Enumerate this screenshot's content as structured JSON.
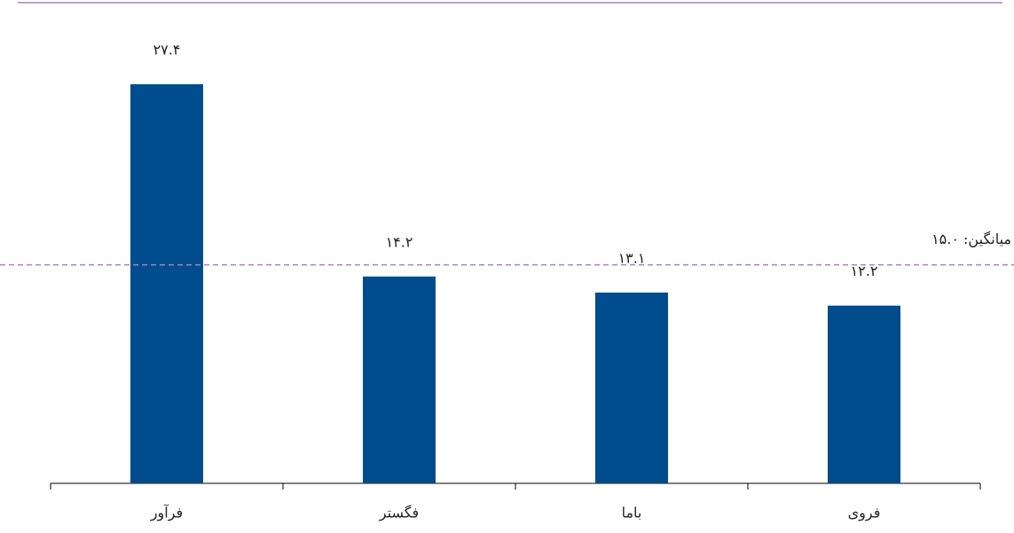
{
  "chart_data": {
    "type": "bar",
    "categories": [
      "فرآور",
      "فگستر",
      "باما",
      "فروی"
    ],
    "values": [
      27.4,
      14.2,
      13.1,
      12.2
    ],
    "value_labels": [
      "۲۷.۴",
      "۱۴.۲",
      "۱۳.۱",
      "۱۲.۲"
    ],
    "color": "#004c8c",
    "reference_line": {
      "value": 15.0,
      "label": "میانگین: ۱۵.۰",
      "color": "#a784b8"
    }
  }
}
